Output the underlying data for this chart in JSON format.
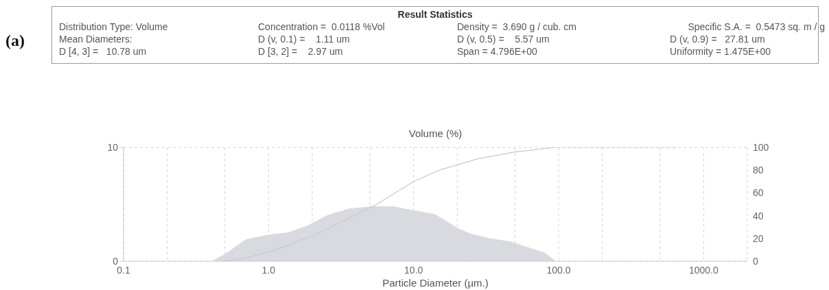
{
  "chart_data": {
    "type": "area",
    "ylabel": "Volume (%)",
    "xlabel": "Particle Diameter (µm.)",
    "annotations": [
      "(a)",
      "Result Statistics",
      "Distribution Type: Volume",
      "Concentration =  0.0118 %Vol",
      "Density =  3.690 g / cub. cm",
      "Specific S.A. =  0.5473 sq. m / g",
      "Mean Diameters:",
      "D (v, 0.1) =    1.11 um",
      "D (v, 0.5) =    5.57 um",
      "D (v, 0.9) =   27.81 um",
      "D [4, 3] =   10.78 um",
      "D [3, 2] =    2.97 um",
      "Span = 4.796E+00",
      "Uniformity = 1.475E+00"
    ],
    "log": "x",
    "xlim": [
      0.1,
      2000
    ],
    "xticks": [
      {
        "value": 0.1,
        "label": "0.1"
      },
      {
        "value": 0.2,
        "label": null
      },
      {
        "value": 0.5,
        "label": null
      },
      {
        "value": 1,
        "label": "1.0"
      },
      {
        "value": 2,
        "label": null
      },
      {
        "value": 5,
        "label": null
      },
      {
        "value": 10,
        "label": "10.0"
      },
      {
        "value": 20,
        "label": null
      },
      {
        "value": 50,
        "label": null
      },
      {
        "value": 100,
        "label": "100.0"
      },
      {
        "value": 200,
        "label": null
      },
      {
        "value": 500,
        "label": null
      },
      {
        "value": 1000,
        "label": "1000.0"
      }
    ],
    "ylim": [
      0,
      10
    ],
    "yticks": [
      0,
      10
    ],
    "y2lim": [
      0,
      100
    ],
    "y2ticks": [
      0,
      20,
      40,
      60,
      80,
      100
    ],
    "grid": true,
    "series": [
      {
        "color": "#d9dadf",
        "x": [
          0.41,
          0.5,
          0.7,
          1.0,
          1.36,
          1.86,
          2.53,
          3.59,
          5.3,
          7.2,
          10.5,
          14.1,
          20,
          24.6,
          33,
          46.7,
          58,
          81,
          95
        ],
        "values": [
          0,
          0.6,
          1.9,
          2.3,
          2.5,
          3.1,
          4.0,
          4.6,
          4.8,
          4.8,
          4.4,
          4.1,
          2.9,
          2.4,
          2.0,
          1.7,
          1.3,
          0.7,
          0
        ]
      },
      {
        "type": "line",
        "axis": "y2",
        "color": "#c4c8d2",
        "x": [
          0.5,
          0.7,
          1.0,
          1.11,
          2,
          3,
          5.57,
          10,
          15,
          27.81,
          50,
          95,
          650
        ],
        "values": [
          0,
          3,
          8,
          10,
          22,
          33,
          50,
          70,
          80,
          90,
          96,
          100,
          100
        ]
      }
    ]
  }
}
